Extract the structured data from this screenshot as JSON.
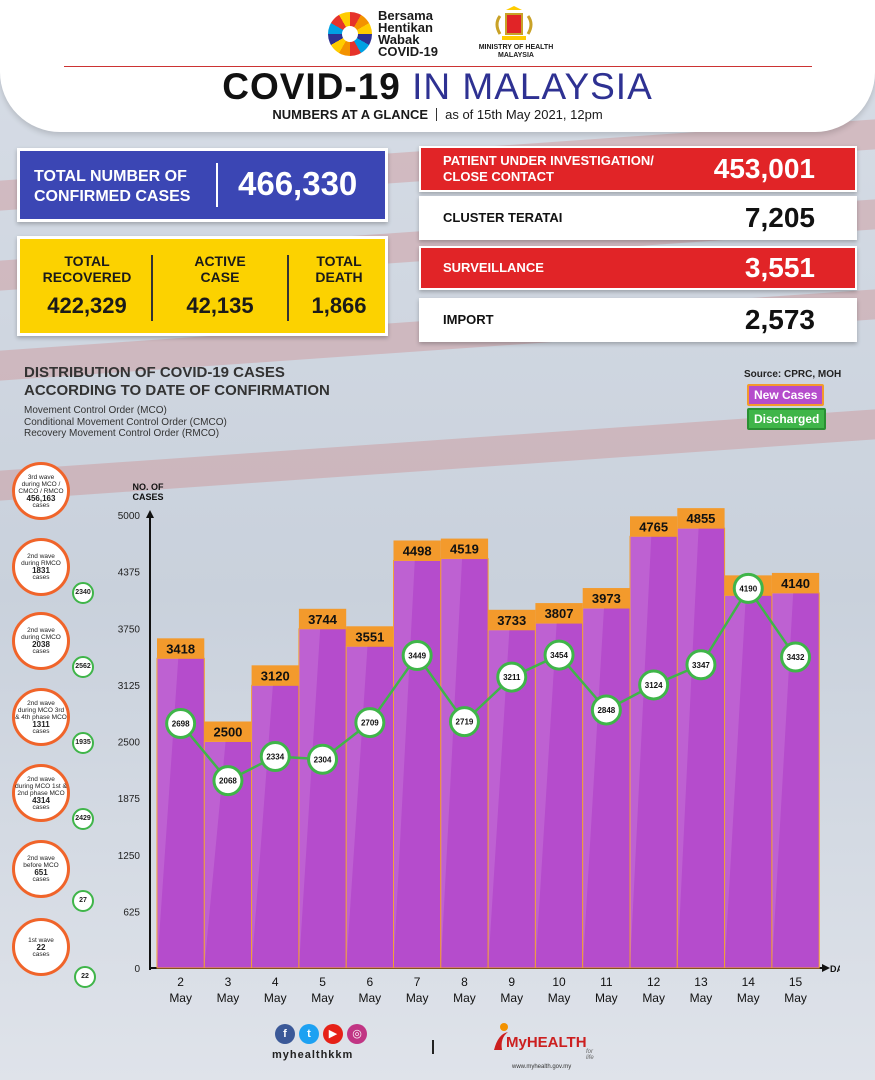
{
  "header": {
    "campaign_logo_lines": [
      "Bersama",
      "Hentikan",
      "Wabak",
      "COVID-19"
    ],
    "ministry_lines": [
      "MINISTRY OF HEALTH",
      "MALAYSIA"
    ],
    "title_part1": "COVID-19",
    "title_part2": "IN MALAYSIA",
    "subtitle_bold": "NUMBERS AT A GLANCE",
    "subtitle_date": "as of 15th May 2021, 12pm"
  },
  "stats": {
    "total_label_line1": "TOTAL NUMBER OF",
    "total_label_line2": "CONFIRMED CASES",
    "total_value": "466,330",
    "recovered_label_line1": "TOTAL",
    "recovered_label_line2": "RECOVERED",
    "recovered_value": "422,329",
    "active_label_line1": "ACTIVE",
    "active_label_line2": "CASE",
    "active_value": "42,135",
    "death_label_line1": "TOTAL",
    "death_label_line2": "DEATH",
    "death_value": "1,866"
  },
  "categories": {
    "pui_label_line1": "PATIENT UNDER INVESTIGATION/",
    "pui_label_line2": "CLOSE CONTACT",
    "pui_value": "453,001",
    "cluster_label": "CLUSTER TERATAI",
    "cluster_value": "7,205",
    "surveillance_label": "SURVEILLANCE",
    "surveillance_value": "3,551",
    "import_label": "IMPORT",
    "import_value": "2,573"
  },
  "chart_header": {
    "title_line1": "DISTRIBUTION OF COVID-19 CASES",
    "title_line2": "ACCORDING TO DATE OF CONFIRMATION",
    "note1": "Movement Control Order (MCO)",
    "note2": "Conditional Movement Control Order (CMCO)",
    "note3": "Recovery Movement Control Order (RMCO)",
    "source": "Source: CPRC, MOH",
    "legend_new": "New Cases",
    "legend_discharged": "Discharged"
  },
  "waves": [
    {
      "line1": "3rd wave",
      "line2": "during MCO /",
      "line3": "CMCO / RMCO",
      "cases": "456,163",
      "unit": "cases",
      "discharged": ""
    },
    {
      "line1": "2nd wave",
      "line2": "during RMCO",
      "line3": "",
      "cases": "1831",
      "unit": "cases",
      "discharged": "2340"
    },
    {
      "line1": "2nd wave",
      "line2": "during CMCO",
      "line3": "",
      "cases": "2038",
      "unit": "cases",
      "discharged": "2562"
    },
    {
      "line1": "2nd wave",
      "line2": "during MCO 3rd",
      "line3": "& 4th phase MCO",
      "cases": "1311",
      "unit": "cases",
      "discharged": "1935"
    },
    {
      "line1": "2nd wave",
      "line2": "during MCO 1st &",
      "line3": "2nd phase MCO",
      "cases": "4314",
      "unit": "cases",
      "discharged": "2429"
    },
    {
      "line1": "2nd wave",
      "line2": "before MCO",
      "line3": "",
      "cases": "651",
      "unit": "cases",
      "discharged": "27"
    },
    {
      "line1": "1st wave",
      "line2": "",
      "line3": "",
      "cases": "22",
      "unit": "cases",
      "discharged": "22"
    }
  ],
  "chart_data": {
    "type": "bar",
    "ylabel": "NO. OF CASES",
    "xlabel": "DATE",
    "ylim": [
      0,
      5000
    ],
    "yticks": [
      0,
      625,
      1250,
      1875,
      2500,
      3125,
      3750,
      4375,
      5000
    ],
    "categories": [
      "2 May",
      "3 May",
      "4 May",
      "5 May",
      "6 May",
      "7 May",
      "8 May",
      "9 May",
      "10 May",
      "11 May",
      "12 May",
      "13 May",
      "14 May",
      "15 May"
    ],
    "series": [
      {
        "name": "New Cases",
        "type": "bar",
        "values": [
          3418,
          2500,
          3120,
          3744,
          3551,
          4498,
          4519,
          3733,
          3807,
          3973,
          4765,
          4855,
          4113,
          4140
        ]
      },
      {
        "name": "Discharged",
        "type": "line",
        "values": [
          2698,
          2068,
          2334,
          2304,
          2709,
          3449,
          2719,
          3211,
          3454,
          2848,
          3124,
          3347,
          4190,
          3432
        ]
      }
    ],
    "colors": {
      "bar": "#b54ccc",
      "bar_label_bg": "#f39a2c",
      "line": "#3fb549"
    }
  },
  "footer": {
    "social_handle": "myhealthkkm",
    "brand": "MyHEALTH",
    "tagline": "for life",
    "url": "www.myhealth.gov.my"
  }
}
